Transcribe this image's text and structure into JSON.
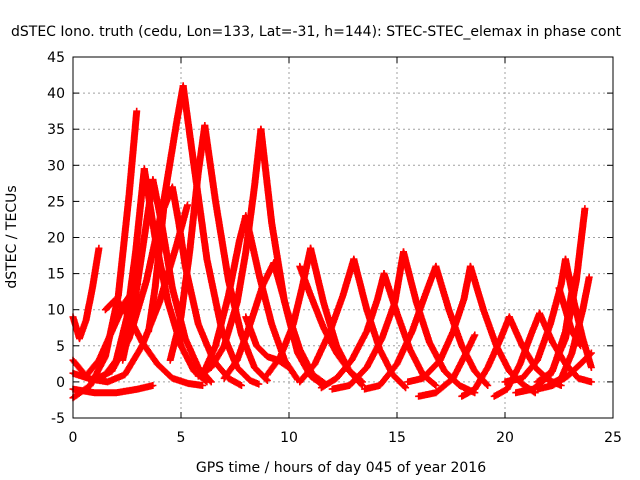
{
  "chart_data": {
    "type": "scatter",
    "title": "dSTEC Iono. truth (cedu, Lon=133, Lat=-31, h=144): STEC-STEC_elemax in phase cont",
    "xlabel": "GPS time / hours of day 045 of year 2016",
    "ylabel": "dSTEC  / TECUs",
    "xlim": [
      0,
      25
    ],
    "ylim": [
      -5,
      45
    ],
    "xticks": [
      0,
      5,
      10,
      15,
      20,
      25
    ],
    "yticks": [
      -5,
      0,
      5,
      10,
      15,
      20,
      25,
      30,
      35,
      40,
      45
    ],
    "grid": true,
    "marker": "plus",
    "color": "#ff0000",
    "series": [
      {
        "x": [
          0.0,
          0.3,
          0.6,
          0.9,
          1.2
        ],
        "y": [
          9.0,
          6.0,
          8.5,
          13.0,
          18.5
        ]
      },
      {
        "x": [
          0.0,
          0.8,
          1.6,
          2.4,
          3.2,
          4.0,
          4.8,
          5.3
        ],
        "y": [
          1.2,
          0.4,
          0.0,
          1.0,
          5.0,
          11.0,
          19.0,
          24.5
        ]
      },
      {
        "x": [
          0.0,
          0.8,
          1.5,
          2.1,
          2.6,
          2.95
        ],
        "y": [
          -2.2,
          -0.5,
          3.5,
          12.0,
          26.0,
          37.5
        ]
      },
      {
        "x": [
          0.0,
          0.6,
          1.2,
          1.8,
          2.4,
          3.0
        ],
        "y": [
          3.0,
          0.8,
          3.0,
          7.0,
          11.0,
          13.5
        ]
      },
      {
        "x": [
          1.0,
          1.8,
          2.6,
          3.4,
          4.2,
          4.8,
          5.1
        ],
        "y": [
          0.3,
          1.5,
          6.0,
          14.0,
          25.0,
          36.0,
          41.0
        ]
      },
      {
        "x": [
          5.1,
          5.6,
          6.2,
          6.9,
          7.6,
          8.2,
          8.6
        ],
        "y": [
          41.0,
          30.0,
          17.0,
          7.0,
          2.0,
          0.2,
          -0.3
        ]
      },
      {
        "x": [
          1.5,
          2.0,
          2.5,
          2.9,
          3.3
        ],
        "y": [
          1.0,
          3.0,
          9.0,
          18.0,
          29.5
        ]
      },
      {
        "x": [
          3.3,
          3.8,
          4.4,
          5.0,
          5.6,
          6.2
        ],
        "y": [
          29.5,
          20.0,
          11.0,
          5.0,
          1.5,
          0.0
        ]
      },
      {
        "x": [
          3.5,
          3.8,
          4.2,
          4.6,
          4.9,
          5.2,
          5.8,
          6.5,
          7.2,
          7.8
        ],
        "y": [
          7.0,
          13.0,
          24.0,
          27.0,
          22.0,
          16.0,
          8.0,
          3.0,
          0.5,
          -0.5
        ]
      },
      {
        "x": [
          4.5,
          5.0,
          5.4,
          5.8,
          6.1
        ],
        "y": [
          3.0,
          9.0,
          18.0,
          29.0,
          35.5
        ]
      },
      {
        "x": [
          6.1,
          6.6,
          7.2,
          7.8,
          8.4,
          9.0
        ],
        "y": [
          35.5,
          25.0,
          14.0,
          6.5,
          2.0,
          0.2
        ]
      },
      {
        "x": [
          5.8,
          6.4,
          7.0,
          7.6,
          8.0,
          8.4,
          8.7
        ],
        "y": [
          0.8,
          2.0,
          5.0,
          11.0,
          18.0,
          27.0,
          35.0
        ]
      },
      {
        "x": [
          8.7,
          9.2,
          9.8,
          10.4,
          11.0,
          11.6
        ],
        "y": [
          35.0,
          22.0,
          11.0,
          4.0,
          0.8,
          -0.5
        ]
      },
      {
        "x": [
          6.0,
          6.6,
          7.2,
          7.7,
          8.0
        ],
        "y": [
          1.0,
          5.0,
          12.0,
          19.5,
          23.0
        ]
      },
      {
        "x": [
          8.0,
          8.6,
          9.2,
          9.8,
          10.4
        ],
        "y": [
          23.0,
          15.0,
          8.0,
          3.0,
          0.3
        ]
      },
      {
        "x": [
          7.0,
          7.6,
          8.2,
          8.8,
          9.3
        ],
        "y": [
          0.5,
          3.0,
          8.0,
          13.5,
          16.5
        ]
      },
      {
        "x": [
          9.3,
          9.9,
          10.5,
          11.1,
          11.7
        ],
        "y": [
          16.5,
          10.0,
          4.5,
          1.0,
          -0.3
        ]
      },
      {
        "x": [
          8.0,
          8.5,
          9.0,
          9.5,
          10.0
        ],
        "y": [
          9.0,
          5.0,
          3.5,
          3.0,
          2.0
        ]
      },
      {
        "x": [
          9.0,
          9.6,
          10.2,
          10.6,
          11.0
        ],
        "y": [
          1.0,
          3.5,
          8.0,
          13.0,
          18.5
        ]
      },
      {
        "x": [
          11.0,
          11.6,
          12.2,
          12.8,
          13.4
        ],
        "y": [
          18.5,
          11.0,
          5.0,
          1.5,
          -0.5
        ]
      },
      {
        "x": [
          10.5,
          11.2,
          11.9,
          12.5,
          13.0
        ],
        "y": [
          0.0,
          2.5,
          7.0,
          12.0,
          17.0
        ]
      },
      {
        "x": [
          13.0,
          13.6,
          14.2,
          14.8,
          15.4
        ],
        "y": [
          17.0,
          10.0,
          4.5,
          1.0,
          -0.8
        ]
      },
      {
        "x": [
          10.5,
          11.0,
          11.6,
          12.2,
          12.8,
          13.4
        ],
        "y": [
          16.0,
          12.0,
          7.5,
          4.0,
          1.5,
          0.0
        ]
      },
      {
        "x": [
          11.5,
          12.2,
          12.9,
          13.6,
          14.1,
          14.4
        ],
        "y": [
          -0.8,
          0.5,
          3.0,
          7.0,
          11.5,
          15.0
        ]
      },
      {
        "x": [
          14.4,
          15.0,
          15.6,
          16.2,
          16.8
        ],
        "y": [
          15.0,
          9.5,
          4.5,
          1.0,
          -0.5
        ]
      },
      {
        "x": [
          12.0,
          12.8,
          13.6,
          14.3,
          14.9,
          15.3
        ],
        "y": [
          -1.0,
          -0.5,
          2.0,
          6.0,
          11.0,
          18.0
        ]
      },
      {
        "x": [
          15.3,
          15.9,
          16.5,
          17.2,
          17.9,
          18.6
        ],
        "y": [
          18.0,
          11.0,
          5.5,
          1.5,
          -0.5,
          -1.5
        ]
      },
      {
        "x": [
          13.5,
          14.2,
          15.0,
          15.7,
          16.3,
          16.8
        ],
        "y": [
          -1.0,
          -0.5,
          2.5,
          7.0,
          12.0,
          16.0
        ]
      },
      {
        "x": [
          16.8,
          17.4,
          18.0,
          18.6,
          19.2
        ],
        "y": [
          16.0,
          10.0,
          5.0,
          1.5,
          -0.5
        ]
      },
      {
        "x": [
          15.5,
          16.2,
          17.0,
          17.6,
          18.1,
          18.4
        ],
        "y": [
          0.0,
          0.5,
          3.0,
          7.0,
          11.5,
          16.0
        ]
      },
      {
        "x": [
          18.4,
          19.0,
          19.6,
          20.2,
          20.8,
          21.4
        ],
        "y": [
          16.0,
          10.0,
          5.0,
          1.5,
          -0.3,
          -1.5
        ]
      },
      {
        "x": [
          16.0,
          16.8,
          17.6,
          18.2,
          18.6
        ],
        "y": [
          -2.0,
          -1.5,
          0.5,
          4.0,
          6.5
        ]
      },
      {
        "x": [
          18.0,
          18.6,
          19.2,
          19.8,
          20.2
        ],
        "y": [
          -2.0,
          -1.0,
          2.0,
          6.0,
          9.0
        ]
      },
      {
        "x": [
          20.2,
          20.8,
          21.4,
          22.0,
          22.6
        ],
        "y": [
          9.0,
          5.0,
          2.0,
          0.3,
          -0.5
        ]
      },
      {
        "x": [
          19.5,
          20.1,
          20.7,
          21.2,
          21.6
        ],
        "y": [
          -2.0,
          -1.0,
          2.5,
          6.5,
          9.5
        ]
      },
      {
        "x": [
          21.6,
          22.2,
          22.8,
          23.4,
          24.0
        ],
        "y": [
          9.5,
          5.5,
          2.5,
          0.5,
          0.0
        ]
      },
      {
        "x": [
          20.0,
          20.8,
          21.5,
          22.1,
          22.6,
          22.8
        ],
        "y": [
          0.0,
          0.5,
          3.0,
          8.0,
          13.5,
          17.0
        ]
      },
      {
        "x": [
          22.8,
          23.2,
          23.6,
          24.0
        ],
        "y": [
          17.0,
          11.0,
          6.0,
          2.0
        ]
      },
      {
        "x": [
          20.5,
          21.3,
          22.1,
          22.8,
          23.3,
          23.7
        ],
        "y": [
          -1.5,
          -1.0,
          1.0,
          6.0,
          14.0,
          24.0
        ]
      },
      {
        "x": [
          21.5,
          22.2,
          22.8,
          23.2
        ],
        "y": [
          0.0,
          1.5,
          7.0,
          14.5
        ]
      },
      {
        "x": [
          22.0,
          22.6,
          23.1,
          23.6,
          23.9
        ],
        "y": [
          -0.5,
          0.5,
          4.0,
          10.0,
          14.5
        ]
      },
      {
        "x": [
          21.5,
          22.2,
          22.9,
          23.5,
          24.0
        ],
        "y": [
          -1.0,
          -0.5,
          0.8,
          2.5,
          4.0
        ]
      },
      {
        "x": [
          22.5,
          23.1,
          23.5
        ],
        "y": [
          13.0,
          7.0,
          5.0
        ]
      },
      {
        "x": [
          0.0,
          1.0,
          2.0,
          3.0,
          3.7
        ],
        "y": [
          -1.0,
          -1.5,
          -1.5,
          -1.0,
          -0.5
        ]
      },
      {
        "x": [
          1.5,
          2.0,
          2.6,
          3.2,
          3.9,
          4.6,
          5.3,
          6.0
        ],
        "y": [
          10.0,
          11.5,
          9.0,
          5.5,
          2.5,
          0.5,
          -0.2,
          -0.5
        ]
      },
      {
        "x": [
          2.3,
          2.8,
          3.3,
          3.7
        ],
        "y": [
          3.0,
          10.0,
          20.0,
          28.0
        ]
      },
      {
        "x": [
          3.7,
          4.1,
          4.6,
          5.2,
          5.8,
          6.4
        ],
        "y": [
          28.0,
          22.0,
          13.0,
          6.0,
          2.0,
          0.0
        ]
      }
    ]
  }
}
